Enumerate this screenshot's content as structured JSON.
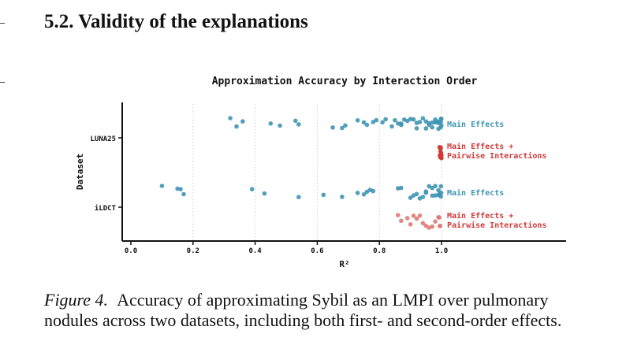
{
  "section": {
    "heading": "5.2. Validity of the explanations"
  },
  "caption": {
    "label": "Figure 4.",
    "text": "Accuracy of approximating Sybil as an LMPI over pulmonary nodules across two datasets, including both first- and second-order effects."
  },
  "chart_data": {
    "type": "scatter",
    "title": "Approximation Accuracy by Interaction Order",
    "xlabel": "R²",
    "ylabel": "Dataset",
    "xlim": [
      0.0,
      1.4
    ],
    "xticks": [
      0.0,
      0.2,
      0.4,
      0.6,
      0.8,
      1.0
    ],
    "xtick_labels": [
      "0.0",
      "0.2",
      "0.4",
      "0.6",
      "0.8",
      "1.0"
    ],
    "categories": [
      "LUNA25",
      "iLDCT"
    ],
    "grid": "vertical dotted",
    "legend": "inline labels at right of each strip",
    "series": [
      {
        "name": "Main Effects",
        "dataset": "LUNA25",
        "color": "#3f95b4",
        "values": [
          0.32,
          0.34,
          0.36,
          0.45,
          0.48,
          0.53,
          0.54,
          0.65,
          0.68,
          0.69,
          0.73,
          0.75,
          0.76,
          0.78,
          0.79,
          0.81,
          0.82,
          0.84,
          0.85,
          0.86,
          0.87,
          0.87,
          0.88,
          0.89,
          0.9,
          0.91,
          0.92,
          0.92,
          0.93,
          0.94,
          0.95,
          0.95,
          0.96,
          0.96,
          0.97,
          0.97,
          0.98,
          0.98,
          0.98,
          0.99,
          0.99,
          0.99,
          1.0,
          1.0,
          1.0,
          1.0,
          1.0,
          1.0
        ]
      },
      {
        "name": "Main Effects + Pairwise Interactions",
        "dataset": "LUNA25",
        "color": "#cf3a3a",
        "values": [
          1.0,
          1.0,
          1.0,
          1.0,
          1.0,
          1.0,
          1.0,
          1.0,
          1.0,
          1.0,
          1.0,
          1.0
        ]
      },
      {
        "name": "Main Effects",
        "dataset": "iLDCT",
        "color": "#3f95b4",
        "values": [
          0.1,
          0.15,
          0.16,
          0.17,
          0.39,
          0.43,
          0.54,
          0.62,
          0.68,
          0.73,
          0.75,
          0.76,
          0.77,
          0.78,
          0.86,
          0.87,
          0.9,
          0.91,
          0.92,
          0.93,
          0.94,
          0.95,
          0.95,
          0.96,
          0.97,
          0.97,
          0.98,
          0.98,
          0.99,
          0.99,
          1.0,
          1.0,
          1.0,
          1.0
        ]
      },
      {
        "name": "Main Effects + Pairwise Interactions",
        "dataset": "iLDCT",
        "color": "#e07a78",
        "values": [
          0.86,
          0.87,
          0.89,
          0.9,
          0.91,
          0.92,
          0.93,
          0.94,
          0.95,
          0.96,
          0.97,
          0.98,
          0.99,
          1.0,
          1.0,
          1.0
        ]
      }
    ]
  }
}
